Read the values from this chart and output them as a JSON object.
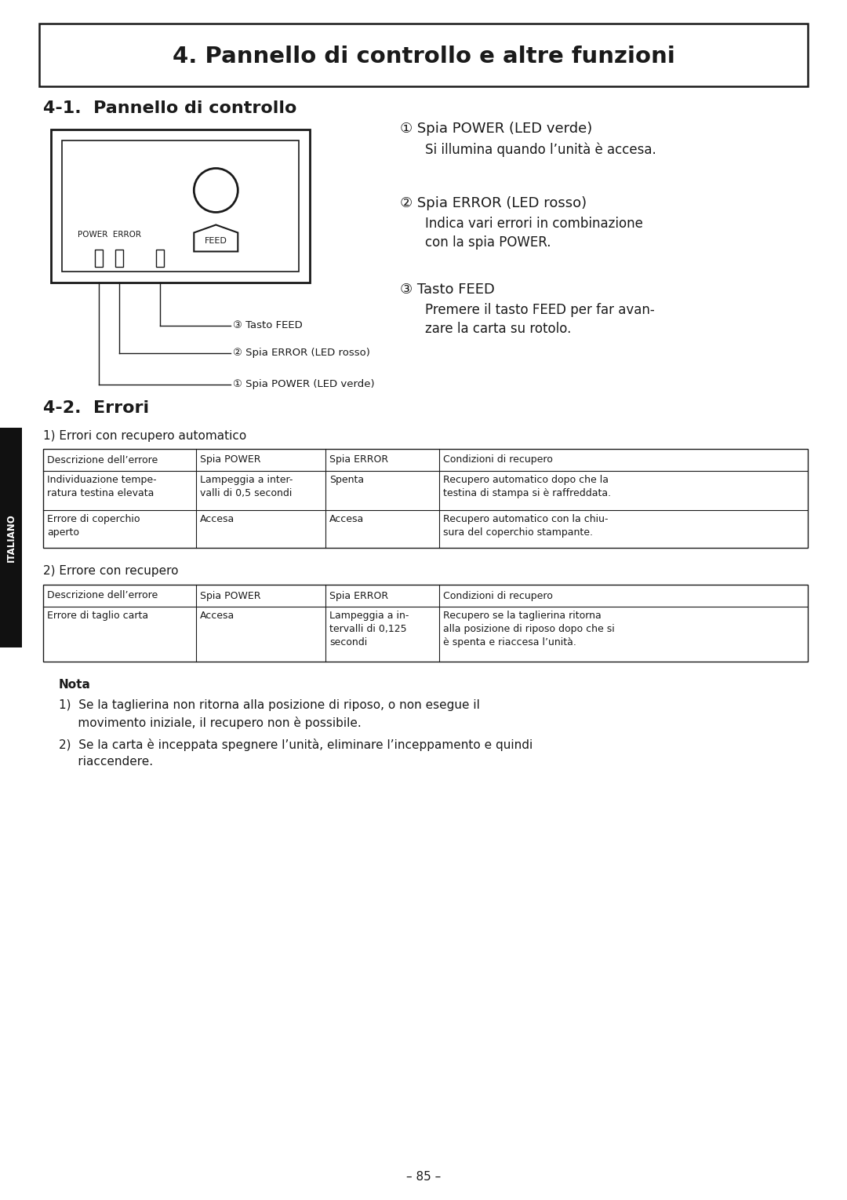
{
  "title": "4. Pannello di controllo e altre funzioni",
  "section1": "4-1.  Pannello di controllo",
  "section2": "4-2.  Errori",
  "bg_color": "#ffffff",
  "tab_label": "ITALIANO",
  "page_num": "– 85 –",
  "right_col_items": [
    {
      "num": "①",
      "bold": "Spia POWER (LED verde)",
      "body": "Si illumina quando l’unità è accesa."
    },
    {
      "num": "②",
      "bold": "Spia ERROR (LED rosso)",
      "body": "Indica vari errori in combinazione\ncon la spia POWER."
    },
    {
      "num": "③",
      "bold": "Tasto FEED",
      "body": "Premere il tasto FEED per far avan-\nzare la carta su rotolo."
    }
  ],
  "table1_title": "1) Errori con recupero automatico",
  "table1_headers": [
    "Descrizione dell’errore",
    "Spia POWER",
    "Spia ERROR",
    "Condizioni di recupero"
  ],
  "table1_rows": [
    [
      "Individuazione tempe-\nratura testina elevata",
      "Lampeggia a inter-\nvalli di 0,5 secondi",
      "Spenta",
      "Recupero automatico dopo che la\ntestina di stampa si è raffreddata."
    ],
    [
      "Errore di coperchio\naperto",
      "Accesa",
      "Accesa",
      "Recupero automatico con la chiu-\nsura del coperchio stampante."
    ]
  ],
  "table2_title": "2) Errore con recupero",
  "table2_headers": [
    "Descrizione dell’errore",
    "Spia POWER",
    "Spia ERROR",
    "Condizioni di recupero"
  ],
  "table2_rows": [
    [
      "Errore di taglio carta",
      "Accesa",
      "Lampeggia a in-\ntervalli di 0,125\nsecondi",
      "Recupero se la taglierina ritorna\nalla posizione di riposo dopo che si\nè spenta e riaccesa l’unità."
    ]
  ],
  "nota_title": "Nota",
  "nota_item1_line1": "1)  Se la taglierina non ritorna alla posizione di riposo, o non esegue il",
  "nota_item1_line2": "     movimento iniziale, il recupero non è possibile.",
  "nota_item2_line1": "2)  Se la carta è inceppata spegnere l’unità, eliminare l’inceppamento e quindi",
  "nota_item2_line2": "     riaccendere."
}
